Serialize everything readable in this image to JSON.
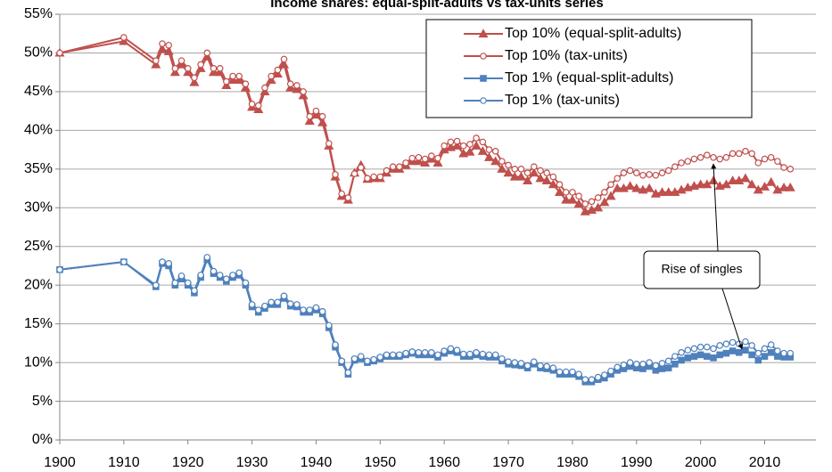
{
  "chart_data": {
    "type": "line",
    "title": "Income shares: equal-split-adults vs tax-units series",
    "annotation": "Rise of singles",
    "x": [
      1900,
      1910,
      1915,
      1916,
      1917,
      1918,
      1919,
      1920,
      1921,
      1922,
      1923,
      1924,
      1925,
      1926,
      1927,
      1928,
      1929,
      1930,
      1931,
      1932,
      1933,
      1934,
      1935,
      1936,
      1937,
      1938,
      1939,
      1940,
      1941,
      1942,
      1943,
      1944,
      1945,
      1946,
      1947,
      1948,
      1949,
      1950,
      1951,
      1952,
      1953,
      1954,
      1955,
      1956,
      1957,
      1958,
      1959,
      1960,
      1961,
      1962,
      1963,
      1964,
      1965,
      1966,
      1967,
      1968,
      1969,
      1970,
      1971,
      1972,
      1973,
      1974,
      1975,
      1976,
      1977,
      1978,
      1979,
      1980,
      1981,
      1982,
      1983,
      1984,
      1985,
      1986,
      1987,
      1988,
      1989,
      1990,
      1991,
      1992,
      1993,
      1994,
      1995,
      1996,
      1997,
      1998,
      1999,
      2000,
      2001,
      2002,
      2003,
      2004,
      2005,
      2006,
      2007,
      2008,
      2009,
      2010,
      2011,
      2012,
      2013,
      2014
    ],
    "series": [
      {
        "name": "Top 10% (equal-split-adults)",
        "color": "#c0504d",
        "marker": "triangle",
        "filled": true,
        "values": [
          50,
          51.5,
          48.5,
          50.5,
          50.2,
          47.5,
          48.5,
          47.5,
          46.2,
          48,
          49.5,
          47.5,
          47.5,
          45.8,
          46.5,
          46.5,
          45.5,
          43,
          42.7,
          45,
          46.5,
          47.3,
          48.5,
          45.5,
          45.3,
          44.5,
          41.2,
          42,
          41,
          38,
          34,
          31.5,
          31,
          34.5,
          35.5,
          33.7,
          33.8,
          33.8,
          34.5,
          35,
          35,
          35.5,
          36,
          36,
          35.8,
          36.3,
          35.8,
          37.5,
          37.8,
          38,
          37,
          37.2,
          38,
          37.3,
          36.5,
          36,
          35,
          34.5,
          34,
          34,
          33.5,
          34.5,
          33.8,
          33.5,
          33,
          32,
          31,
          31,
          30.5,
          29.5,
          29.7,
          30,
          30.7,
          31.5,
          32.5,
          32.5,
          32.8,
          32.5,
          32.3,
          32.5,
          31.8,
          32,
          32,
          32,
          32.3,
          32.6,
          32.8,
          33,
          33,
          33.5,
          32.8,
          33,
          33.5,
          33.5,
          33.8,
          33,
          32.3,
          32.7,
          33.3,
          32.3,
          32.6,
          32.6
        ]
      },
      {
        "name": "Top 10% (tax-units)",
        "color": "#c0504d",
        "marker": "circle",
        "filled": false,
        "values": [
          50,
          52,
          49,
          51.2,
          51,
          48,
          49,
          48,
          46.8,
          48.5,
          50,
          48,
          48,
          46.3,
          47,
          47,
          46,
          43.4,
          43.2,
          45.5,
          47,
          47.8,
          49.2,
          46,
          45.8,
          45,
          41.8,
          42.5,
          41.8,
          38.3,
          34.3,
          31.8,
          31.3,
          34.4,
          35.2,
          33.8,
          34,
          34,
          34.8,
          35.3,
          35.3,
          35.8,
          36.4,
          36.5,
          36.3,
          36.7,
          36.4,
          38,
          38.5,
          38.6,
          38,
          38.2,
          39,
          38.5,
          37.5,
          37.3,
          36,
          35.5,
          35,
          35,
          34.5,
          35.3,
          34.8,
          34.5,
          34,
          33,
          32,
          32,
          31.5,
          30.5,
          30.8,
          31.3,
          32,
          33,
          33.8,
          34.5,
          34.8,
          34.5,
          34.2,
          34.3,
          34.2,
          34.5,
          34.8,
          35.3,
          35.8,
          36,
          36.3,
          36.5,
          36.8,
          36.5,
          36.3,
          36.5,
          37,
          37,
          37.3,
          37,
          35.8,
          36.3,
          36.5,
          36,
          35.2,
          35
        ]
      },
      {
        "name": "Top 1% (equal-split-adults)",
        "color": "#4f81bd",
        "marker": "square",
        "filled": true,
        "values": [
          22,
          23,
          19.8,
          22.8,
          22.5,
          20,
          20.8,
          20,
          19,
          21,
          23.3,
          21.5,
          21,
          20.5,
          21,
          21.3,
          20,
          17.2,
          16.5,
          17,
          17.5,
          17.5,
          18.3,
          17.3,
          17.2,
          16.5,
          16.5,
          16.8,
          16.3,
          14.5,
          12,
          10,
          8.5,
          10.3,
          10.5,
          10,
          10.2,
          10.5,
          10.8,
          10.8,
          10.8,
          11,
          11.2,
          11,
          11,
          11,
          10.7,
          11.2,
          11.5,
          11.3,
          10.8,
          10.8,
          11,
          10.8,
          10.7,
          10.7,
          10.2,
          9.8,
          9.7,
          9.6,
          9.3,
          9.8,
          9.3,
          9.2,
          9,
          8.5,
          8.5,
          8.5,
          8.2,
          7.5,
          7.5,
          7.8,
          8,
          8.5,
          9,
          9.2,
          9.5,
          9.3,
          9.2,
          9.5,
          9,
          9.2,
          9.3,
          9.8,
          10.3,
          10.6,
          10.8,
          11,
          10.8,
          10.6,
          11,
          11.2,
          11.5,
          11.3,
          11.6,
          11,
          10.3,
          10.8,
          11.3,
          10.8,
          10.7,
          10.7
        ]
      },
      {
        "name": "Top 1% (tax-units)",
        "color": "#4f81bd",
        "marker": "circle",
        "filled": false,
        "values": [
          22,
          23,
          20,
          23,
          22.8,
          20.3,
          21.2,
          20.3,
          19.3,
          21.3,
          23.6,
          21.8,
          21.3,
          20.8,
          21.3,
          21.6,
          20.3,
          17.5,
          16.8,
          17.3,
          17.8,
          17.8,
          18.6,
          17.6,
          17.5,
          16.8,
          16.8,
          17.1,
          16.6,
          14.8,
          12.3,
          10.2,
          8.7,
          10.5,
          10.8,
          10.2,
          10.4,
          10.7,
          11,
          11,
          11,
          11.2,
          11.4,
          11.3,
          11.3,
          11.3,
          11,
          11.5,
          11.8,
          11.6,
          11.1,
          11.1,
          11.3,
          11.1,
          11,
          11,
          10.5,
          10.1,
          10,
          9.9,
          9.6,
          10.1,
          9.6,
          9.5,
          9.3,
          8.8,
          8.8,
          8.8,
          8.5,
          7.8,
          7.8,
          8.1,
          8.4,
          8.9,
          9.4,
          9.7,
          10,
          9.8,
          9.8,
          10,
          9.6,
          9.9,
          10.2,
          10.8,
          11.3,
          11.6,
          11.8,
          12,
          12,
          11.8,
          12.2,
          12.4,
          12.6,
          12.4,
          12.7,
          12.2,
          11.2,
          11.8,
          12.3,
          11.5,
          11.2,
          11.2
        ]
      }
    ],
    "xlim": [
      1900,
      2018
    ],
    "xticks": [
      1900,
      1910,
      1920,
      1930,
      1940,
      1950,
      1960,
      1970,
      1980,
      1990,
      2000,
      2010
    ],
    "ylim": [
      0,
      55
    ],
    "yticks": [
      {
        "value": 0,
        "label": "0%"
      },
      {
        "value": 5,
        "label": "5%"
      },
      {
        "value": 10,
        "label": "10%"
      },
      {
        "value": 15,
        "label": "15%"
      },
      {
        "value": 20,
        "label": "20%"
      },
      {
        "value": 25,
        "label": "25%"
      },
      {
        "value": 30,
        "label": "30%"
      },
      {
        "value": 35,
        "label": "35%"
      },
      {
        "value": 40,
        "label": "40%"
      },
      {
        "value": 45,
        "label": "45%"
      },
      {
        "value": 50,
        "label": "50%"
      },
      {
        "value": 55,
        "label": "55%"
      }
    ],
    "grid": true
  }
}
